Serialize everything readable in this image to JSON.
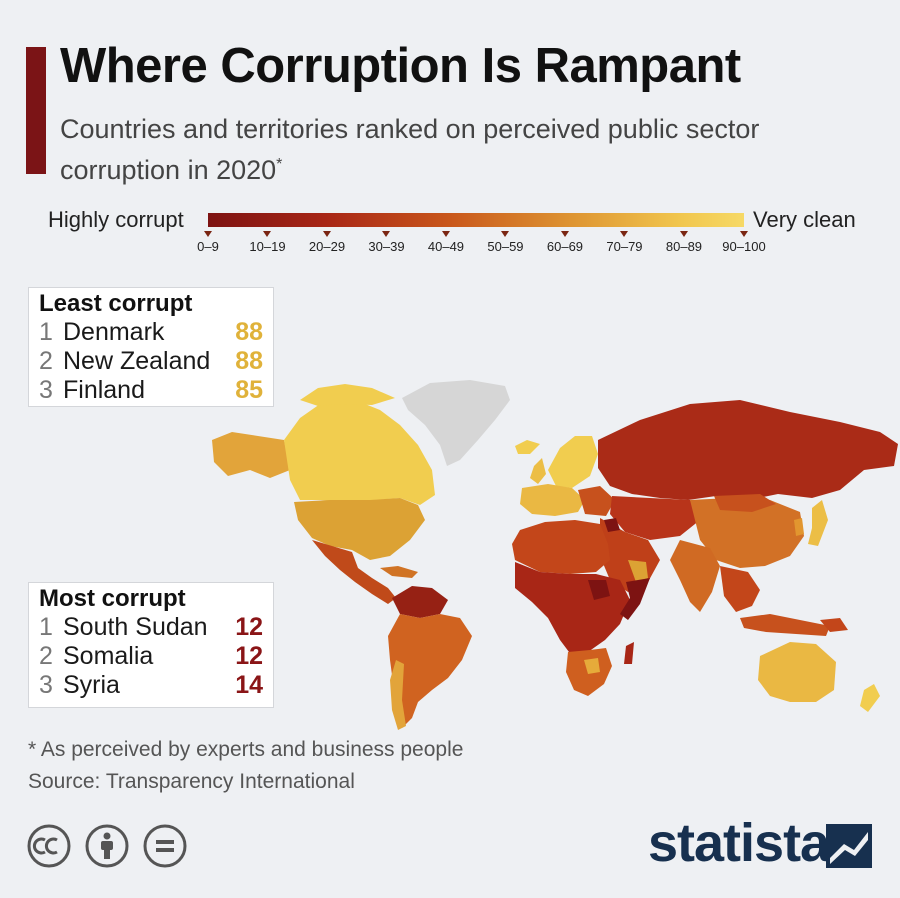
{
  "header": {
    "title": "Where Corruption Is Rampant",
    "subtitle": "Countries and territories ranked on perceived public sector corruption in 2020",
    "subtitle_mark": "*"
  },
  "legend": {
    "low_label": "Highly corrupt",
    "high_label": "Very clean",
    "ticks": [
      "0–9",
      "10–19",
      "20–29",
      "30–39",
      "40–49",
      "50–59",
      "60–69",
      "70–79",
      "80–89",
      "90–100"
    ]
  },
  "least_corrupt": {
    "heading": "Least corrupt",
    "items": [
      {
        "rank": "1",
        "country": "Denmark",
        "score": "88"
      },
      {
        "rank": "2",
        "country": "New Zealand",
        "score": "88"
      },
      {
        "rank": "3",
        "country": "Finland",
        "score": "85"
      }
    ]
  },
  "most_corrupt": {
    "heading": "Most corrupt",
    "items": [
      {
        "rank": "1",
        "country": "South Sudan",
        "score": "12"
      },
      {
        "rank": "2",
        "country": "Somalia",
        "score": "12"
      },
      {
        "rank": "3",
        "country": "Syria",
        "score": "14"
      }
    ]
  },
  "footer": {
    "footnote": "* As perceived by experts and business people",
    "source": "Source: Transparency International",
    "brand": "statista"
  },
  "colors": {
    "accent": "#7b1416",
    "no_data": "#d6d6d6",
    "scale": [
      "#7d1312",
      "#a82616",
      "#c3461a",
      "#cf5f1f",
      "#d97a27",
      "#e2962f",
      "#e6ab3a",
      "#ecbe46",
      "#f1cd4f",
      "#f6d966"
    ]
  },
  "icons": [
    "creative-commons-icon",
    "attribution-icon",
    "no-derivatives-icon",
    "statista-logo-icon"
  ]
}
